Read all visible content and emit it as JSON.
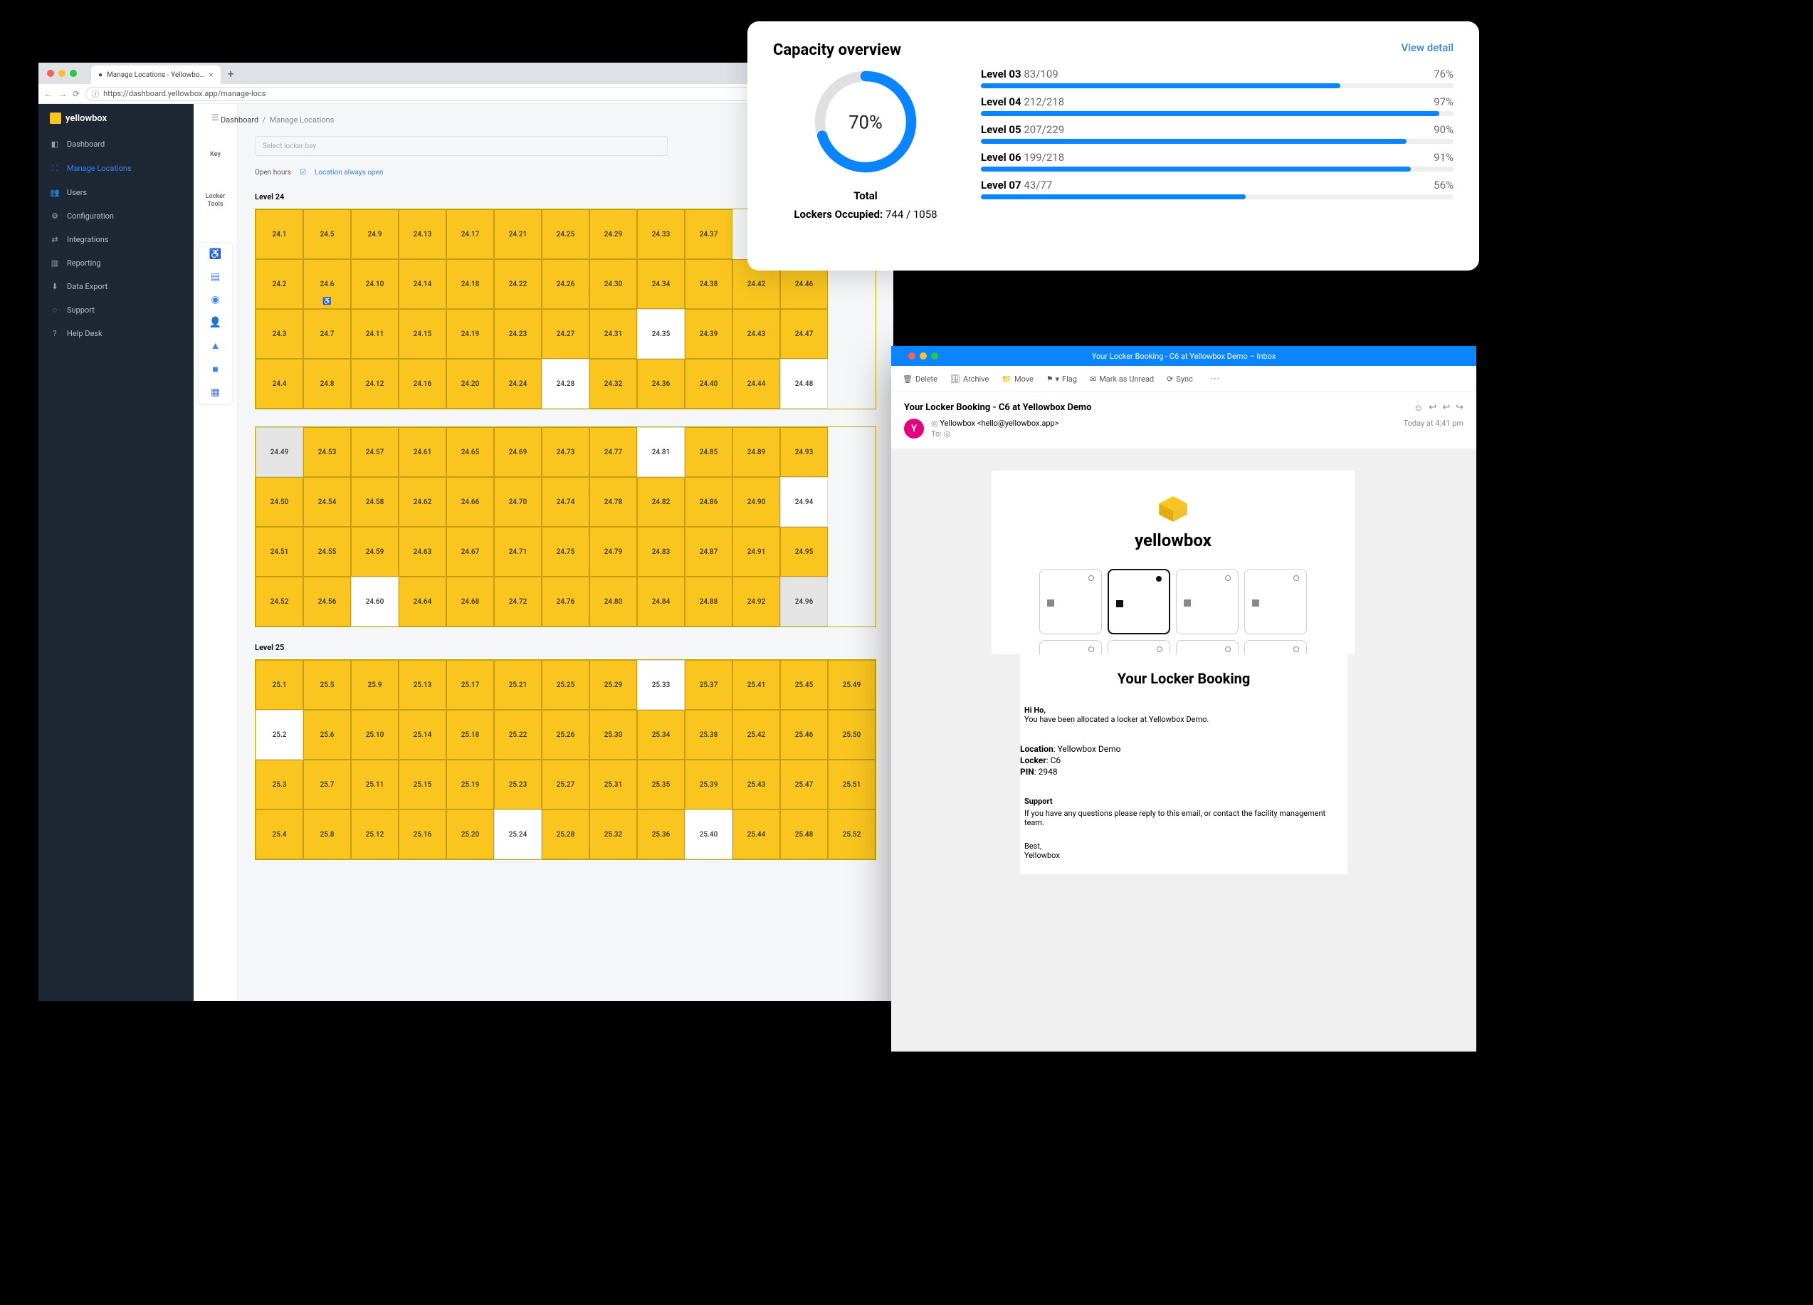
{
  "browser": {
    "tab_title": "Manage Locations - Yellowbo…",
    "url": "https://dashboard.yellowbox.app/manage-locs"
  },
  "sidebar": {
    "logo": "yellowbox",
    "items": [
      "Dashboard",
      "Manage Locations",
      "Users",
      "Configuration",
      "Integrations",
      "Reporting",
      "Data Export",
      "Support",
      "Help Desk"
    ]
  },
  "breadcrumb": {
    "a": "Dashboard",
    "b": "Manage Locations"
  },
  "select_bay_placeholder": "Select locker bay",
  "open_hours": {
    "label": "Open hours",
    "option": "Location always open"
  },
  "left_rail": {
    "key": "Key",
    "tools": "Locker\nTools"
  },
  "grid": {
    "occupied_color": "#f9c51e",
    "vacant_color": "#ffffff",
    "disabled_color": "#e4e4e4",
    "level24_label": "Level 24",
    "level24_rows": [
      [
        "24.1",
        "24.5",
        "24.9",
        "24.13",
        "24.17",
        "24.21",
        "24.25",
        "24.29",
        "24.33",
        "24.37"
      ],
      [
        "24.2",
        "24.6",
        "24.10",
        "24.14",
        "24.18",
        "24.22",
        "24.26",
        "24.30",
        "24.34",
        "24.38",
        "24.42",
        "24.46"
      ],
      [
        "24.3",
        "24.7",
        "24.11",
        "24.15",
        "24.19",
        "24.23",
        "24.27",
        "24.31",
        "24.35",
        "24.39",
        "24.43",
        "24.47"
      ],
      [
        "24.4",
        "24.8",
        "24.12",
        "24.16",
        "24.20",
        "24.24",
        "24.28",
        "24.32",
        "24.36",
        "24.40",
        "24.44",
        "24.48"
      ]
    ],
    "level24_vacant": [
      "24.35",
      "24.28",
      "24.48"
    ],
    "level24_wheelchair": [
      "24.6"
    ],
    "level24b_rows": [
      [
        "24.49",
        "24.53",
        "24.57",
        "24.61",
        "24.65",
        "24.69",
        "24.73",
        "24.77",
        "24.81",
        "24.85",
        "24.89",
        "24.93"
      ],
      [
        "24.50",
        "24.54",
        "24.58",
        "24.62",
        "24.66",
        "24.70",
        "24.74",
        "24.78",
        "24.82",
        "24.86",
        "24.90",
        "24.94"
      ],
      [
        "24.51",
        "24.55",
        "24.59",
        "24.63",
        "24.67",
        "24.71",
        "24.75",
        "24.79",
        "24.83",
        "24.87",
        "24.91",
        "24.95"
      ],
      [
        "24.52",
        "24.56",
        "24.60",
        "24.64",
        "24.68",
        "24.72",
        "24.76",
        "24.80",
        "24.84",
        "24.88",
        "24.92",
        "24.96"
      ]
    ],
    "level24b_vacant": [
      "24.81",
      "24.94",
      "24.60"
    ],
    "level24b_grey": [
      "24.49",
      "24.96"
    ],
    "level25_label": "Level 25",
    "level25_rows": [
      [
        "25.1",
        "25.5",
        "25.9",
        "25.13",
        "25.17",
        "25.21",
        "25.25",
        "25.29",
        "25.33",
        "25.37",
        "25.41",
        "25.45",
        "25.49"
      ],
      [
        "25.2",
        "25.6",
        "25.10",
        "25.14",
        "25.18",
        "25.22",
        "25.26",
        "25.30",
        "25.34",
        "25.38",
        "25.42",
        "25.46",
        "25.50"
      ],
      [
        "25.3",
        "25.7",
        "25.11",
        "25.15",
        "25.19",
        "25.23",
        "25.27",
        "25.31",
        "25.35",
        "25.39",
        "25.43",
        "25.47",
        "25.51"
      ],
      [
        "25.4",
        "25.8",
        "25.12",
        "25.16",
        "25.20",
        "25.24",
        "25.28",
        "25.32",
        "25.36",
        "25.40",
        "25.44",
        "25.48",
        "25.52"
      ]
    ],
    "level25_vacant": [
      "25.33",
      "25.2",
      "25.24",
      "25.40"
    ]
  },
  "overview": {
    "title": "Capacity overview",
    "detail": "View detail",
    "donut_pct": 70,
    "donut_label": "Total",
    "occupied_label": "Lockers Occupied:",
    "occupied_val": "744 / 1058",
    "ring_color": "#0a84ff",
    "ring_bg": "#e0e0e0",
    "levels": [
      {
        "name": "Level 03",
        "ratio": "83/109",
        "pct": 76
      },
      {
        "name": "Level 04",
        "ratio": "212/218",
        "pct": 97
      },
      {
        "name": "Level 05",
        "ratio": "207/229",
        "pct": 90
      },
      {
        "name": "Level 06",
        "ratio": "199/218",
        "pct": 91
      },
      {
        "name": "Level 07",
        "ratio": "43/77",
        "pct": 56
      }
    ]
  },
  "mail": {
    "window_title": "Your Locker Booking - C6 at Yellowbox Demo – Inbox",
    "toolbar": [
      "Delete",
      "Archive",
      "Move",
      "Flag",
      "Mark as Unread",
      "Sync"
    ],
    "subject": "Your Locker Booking - C6 at Yellowbox Demo",
    "from": "Yellowbox <hello@yellowbox.app>",
    "to_label": "To:",
    "time": "Today at 4:41 pm",
    "brand": "yellowbox",
    "heading": "Your Locker Booking",
    "greet_name": "Hi Ho,",
    "greet_body": "You have been allocated a locker at Yellowbox Demo.",
    "location_label": "Location",
    "location_val": "Yellowbox Demo",
    "locker_label": "Locker",
    "locker_val": "C6",
    "pin_label": "PIN",
    "pin_val": "2948",
    "support_h": "Support",
    "support_body": "If you have any questions please reply to this email, or contact the facility management team.",
    "signoff1": "Best,",
    "signoff2": "Yellowbox"
  }
}
